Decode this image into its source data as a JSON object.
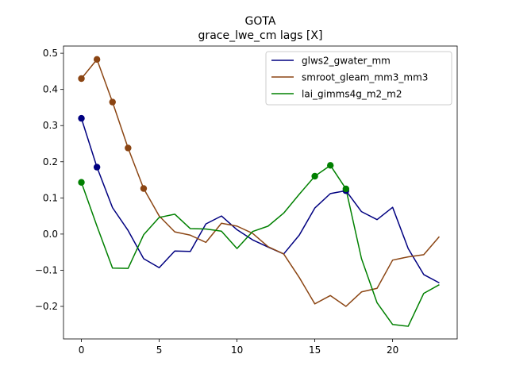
{
  "chart_data": {
    "type": "line",
    "title": "GOTA",
    "subtitle": "grace_lwe_cm lags [X]",
    "xlabel": "",
    "ylabel": "",
    "xlim": [
      -1.15,
      24.15
    ],
    "ylim": [
      -0.29,
      0.52
    ],
    "xticks": [
      0,
      5,
      10,
      15,
      20
    ],
    "yticks": [
      -0.2,
      -0.1,
      0.0,
      0.1,
      0.2,
      0.3,
      0.4,
      0.5
    ],
    "ytick_labels": [
      "−0.2",
      "−0.1",
      "0.0",
      "0.1",
      "0.2",
      "0.3",
      "0.4",
      "0.5"
    ],
    "grid": false,
    "legend_position": "upper-right",
    "x": [
      0,
      1,
      2,
      3,
      4,
      5,
      6,
      7,
      8,
      9,
      10,
      11,
      12,
      13,
      14,
      15,
      16,
      17,
      18,
      19,
      20,
      21,
      22,
      23
    ],
    "series": [
      {
        "name": "glws2_gwater_mm",
        "color": "#000080",
        "values": [
          0.32,
          0.185,
          0.073,
          0.01,
          -0.068,
          -0.093,
          -0.047,
          -0.048,
          0.028,
          0.05,
          0.012,
          -0.016,
          -0.036,
          -0.055,
          -0.003,
          0.072,
          0.112,
          0.12,
          0.062,
          0.04,
          0.074,
          -0.04,
          -0.112,
          -0.135
        ],
        "markers": [
          0,
          1,
          17
        ]
      },
      {
        "name": "smroot_gleam_mm3_mm3",
        "color": "#8B4513",
        "values": [
          0.43,
          0.483,
          0.365,
          0.238,
          0.126,
          0.05,
          0.006,
          -0.003,
          -0.023,
          0.03,
          0.022,
          0.002,
          -0.035,
          -0.055,
          -0.12,
          -0.193,
          -0.17,
          -0.2,
          -0.16,
          -0.15,
          -0.072,
          -0.063,
          -0.057,
          -0.007
        ],
        "markers": [
          0,
          1,
          2,
          3,
          4
        ]
      },
      {
        "name": "lai_gimms4g_m2_m2",
        "color": "#008000",
        "values": [
          0.143,
          0.022,
          -0.094,
          -0.095,
          -0.002,
          0.046,
          0.055,
          0.015,
          0.014,
          0.008,
          -0.04,
          0.007,
          0.022,
          0.058,
          0.11,
          0.16,
          0.19,
          0.125,
          -0.068,
          -0.19,
          -0.25,
          -0.255,
          -0.164,
          -0.14
        ],
        "markers": [
          0,
          15,
          16,
          17
        ]
      }
    ]
  }
}
